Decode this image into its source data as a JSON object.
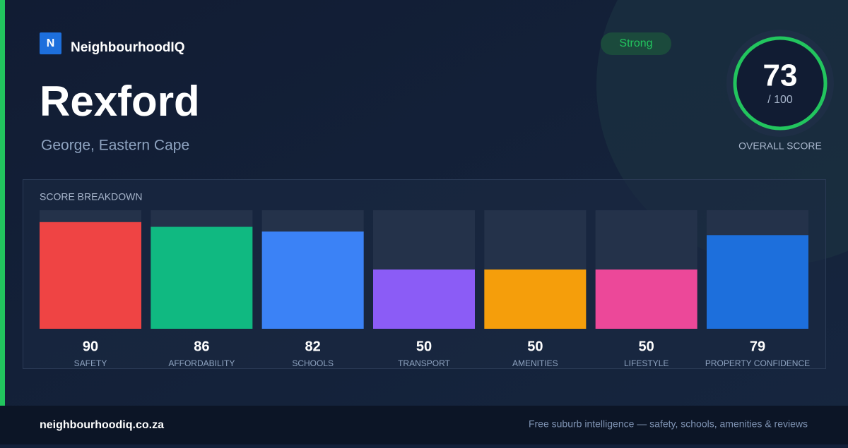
{
  "brand": {
    "logo": "N",
    "name": "NeighbourhoodIQ"
  },
  "suburb": "Rexford",
  "location": "George, Eastern Cape",
  "badge": "Strong",
  "overall": {
    "score": 73,
    "max_label": "/ 100",
    "label": "OVERALL SCORE"
  },
  "chart_data": {
    "type": "bar",
    "title": "SCORE BREAKDOWN",
    "categories": [
      "SAFETY",
      "AFFORDABILITY",
      "SCHOOLS",
      "TRANSPORT",
      "AMENITIES",
      "LIFESTYLE",
      "PROPERTY CONFIDENCE"
    ],
    "values": [
      90,
      86,
      82,
      50,
      50,
      50,
      79
    ],
    "colors": [
      "#ef4444",
      "#10b981",
      "#3b82f6",
      "#8b5cf6",
      "#f59e0b",
      "#ec4899",
      "#1d6fdc"
    ],
    "ylim": [
      0,
      100
    ]
  },
  "footer": {
    "site": "neighbourhoodiq.co.za",
    "tagline": "Free suburb intelligence — safety, schools, amenities & reviews"
  }
}
